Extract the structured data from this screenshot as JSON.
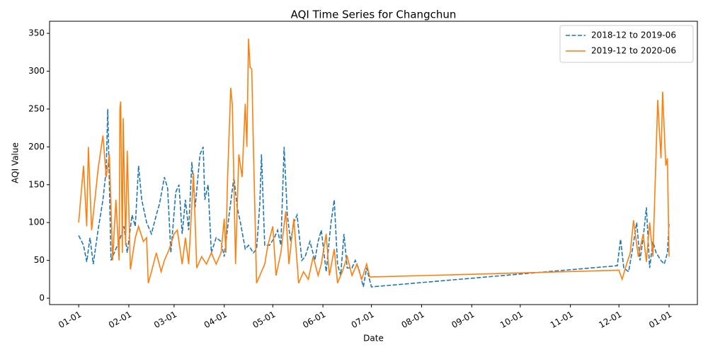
{
  "chart_data": {
    "type": "line",
    "title": "AQI Time Series for Changchun",
    "xlabel": "Date",
    "ylabel": "AQI Value",
    "xlim": [
      -18,
      382.5
    ],
    "ylim": [
      -8.4,
      366
    ],
    "xticks": [
      {
        "value": 0,
        "label": "01-01"
      },
      {
        "value": 31,
        "label": "02-01"
      },
      {
        "value": 59,
        "label": "03-01"
      },
      {
        "value": 90,
        "label": "04-01"
      },
      {
        "value": 120,
        "label": "05-01"
      },
      {
        "value": 151,
        "label": "06-01"
      },
      {
        "value": 181,
        "label": "07-01"
      },
      {
        "value": 212,
        "label": "08-01"
      },
      {
        "value": 243,
        "label": "09-01"
      },
      {
        "value": 273,
        "label": "10-01"
      },
      {
        "value": 304,
        "label": "11-01"
      },
      {
        "value": 334,
        "label": "12-01"
      },
      {
        "value": 365,
        "label": "01-01"
      }
    ],
    "yticks": [
      0,
      50,
      100,
      150,
      200,
      250,
      300,
      350
    ],
    "legend": "upper right",
    "series": [
      {
        "name": "2018-12 to 2019-06",
        "color": "#1f77b4",
        "linestyle": "dashed",
        "x": [
          0,
          3,
          5,
          7,
          9,
          12,
          15,
          17,
          18,
          20,
          22,
          25,
          28,
          30,
          33,
          35,
          37,
          39,
          42,
          45,
          48,
          50,
          53,
          55,
          57,
          60,
          62,
          64,
          66,
          68,
          70,
          72,
          75,
          77,
          78,
          80,
          82,
          85,
          88,
          90,
          93,
          96,
          98,
          100,
          103,
          105,
          108,
          110,
          112,
          113,
          115,
          118,
          121,
          123,
          125,
          127,
          129,
          131,
          133,
          135,
          138,
          140,
          143,
          146,
          148,
          150,
          153,
          156,
          158,
          160,
          162,
          164,
          166,
          169,
          171,
          173,
          176,
          178,
          181,
          333,
          335,
          337,
          340,
          342,
          345,
          347,
          349,
          351,
          353,
          355,
          357,
          360,
          362,
          364,
          365
        ],
        "values": [
          83,
          70,
          48,
          80,
          45,
          90,
          130,
          170,
          250,
          50,
          60,
          75,
          95,
          60,
          110,
          95,
          175,
          130,
          100,
          85,
          110,
          125,
          160,
          145,
          60,
          140,
          150,
          85,
          130,
          90,
          180,
          120,
          190,
          200,
          130,
          150,
          60,
          80,
          75,
          55,
          110,
          160,
          120,
          100,
          65,
          70,
          60,
          65,
          125,
          190,
          70,
          70,
          80,
          90,
          70,
          200,
          110,
          75,
          100,
          110,
          50,
          55,
          75,
          50,
          75,
          90,
          35,
          100,
          130,
          45,
          30,
          85,
          40,
          40,
          50,
          40,
          15,
          40,
          15,
          43,
          78,
          40,
          35,
          60,
          100,
          50,
          80,
          120,
          40,
          75,
          60,
          50,
          45,
          60,
          100
        ]
      },
      {
        "name": "2019-12 to 2020-06",
        "color": "#ff7f0e",
        "linestyle": "solid",
        "x": [
          0,
          3,
          5,
          6,
          8,
          10,
          12,
          15,
          17,
          19,
          21,
          23,
          25,
          25.5,
          26,
          27,
          27.5,
          29,
          30,
          32,
          35,
          37,
          40,
          42,
          43,
          45,
          48,
          51,
          53,
          56,
          59,
          61,
          64,
          66,
          68,
          71,
          73,
          76,
          79,
          82,
          85,
          88,
          90,
          91,
          92,
          94,
          95,
          97,
          99,
          101,
          103,
          104,
          105,
          106,
          107,
          108,
          110,
          113,
          115,
          117,
          120,
          122,
          125,
          128,
          130,
          133,
          136,
          139,
          142,
          145,
          148,
          150,
          153,
          155,
          158,
          160,
          163,
          166,
          169,
          172,
          175,
          178,
          180,
          334,
          336,
          338,
          341,
          343,
          346,
          349,
          351,
          353,
          355,
          358,
          360,
          361,
          363,
          364,
          365
        ],
        "values": [
          100,
          175,
          95,
          200,
          90,
          130,
          170,
          215,
          160,
          190,
          50,
          130,
          50,
          250,
          260,
          60,
          238,
          70,
          195,
          38,
          80,
          95,
          75,
          80,
          20,
          35,
          60,
          35,
          50,
          65,
          85,
          90,
          45,
          80,
          45,
          165,
          40,
          55,
          45,
          60,
          45,
          60,
          105,
          60,
          155,
          278,
          255,
          45,
          190,
          160,
          257,
          200,
          343,
          305,
          303,
          200,
          20,
          35,
          45,
          70,
          95,
          30,
          60,
          115,
          45,
          105,
          20,
          35,
          25,
          55,
          30,
          45,
          85,
          30,
          65,
          20,
          35,
          55,
          30,
          45,
          25,
          45,
          28,
          37,
          25,
          40,
          60,
          103,
          55,
          85,
          48,
          100,
          55,
          262,
          185,
          273,
          175,
          185,
          55
        ]
      }
    ]
  }
}
